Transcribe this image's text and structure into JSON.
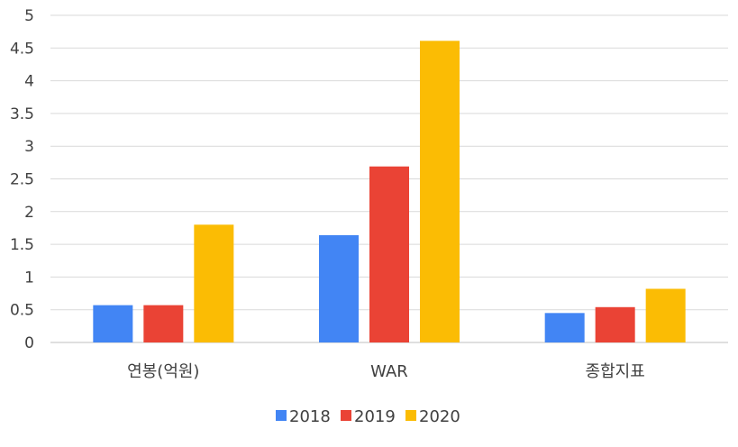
{
  "chart_data": {
    "type": "bar",
    "title": "",
    "xlabel": "",
    "ylabel": "",
    "categories": [
      "연봉(억원)",
      "WAR",
      "종합지표"
    ],
    "series": [
      {
        "name": "2018",
        "color": "#4285F4",
        "values": [
          0.57,
          1.64,
          0.45
        ]
      },
      {
        "name": "2019",
        "color": "#EA4335",
        "values": [
          0.57,
          2.69,
          0.54
        ]
      },
      {
        "name": "2020",
        "color": "#FBBC04",
        "values": [
          1.8,
          4.61,
          0.82
        ]
      }
    ],
    "ylim": [
      0,
      5
    ],
    "yticks": [
      "0",
      "0.5",
      "1",
      "1.5",
      "2",
      "2.5",
      "3",
      "3.5",
      "4",
      "4.5",
      "5"
    ],
    "grid": true,
    "legend_position": "bottom"
  }
}
